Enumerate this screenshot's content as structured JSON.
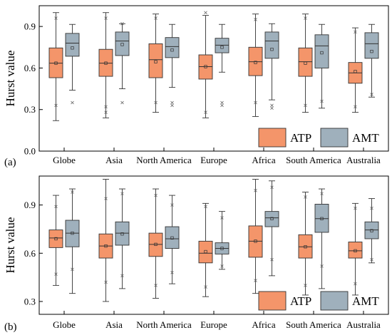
{
  "chart_data": [
    {
      "type": "box",
      "panel_label": "(a)",
      "ylabel": "Hurst value",
      "ylim": [
        0.0,
        1.05
      ],
      "yticks": [
        0.0,
        0.3,
        0.6,
        0.9
      ],
      "ytick_labels": [
        "0.0",
        "0.3",
        "0.6",
        "0.9"
      ],
      "legend_position": "bottom-right",
      "categories": [
        "Globe",
        "Asia",
        "North America",
        "Europe",
        "Africa",
        "South America",
        "Australia"
      ],
      "series": [
        {
          "name": "ATP",
          "color": "#F4956A",
          "boxes": [
            {
              "min": 0.22,
              "q1": 0.53,
              "median": 0.635,
              "q3": 0.745,
              "max": 1.0,
              "mean": 0.635,
              "outliers": [
                0.96,
                0.33
              ]
            },
            {
              "min": 0.24,
              "q1": 0.54,
              "median": 0.635,
              "q3": 0.735,
              "max": 1.0,
              "mean": 0.635,
              "outliers": [
                0.96,
                0.32,
                0.28
              ]
            },
            {
              "min": 0.28,
              "q1": 0.53,
              "median": 0.66,
              "q3": 0.775,
              "max": 0.99,
              "mean": 0.645,
              "outliers": [
                0.96,
                0.35
              ]
            },
            {
              "min": 0.24,
              "q1": 0.52,
              "median": 0.61,
              "q3": 0.695,
              "max": 0.98,
              "mean": 0.61,
              "outliers": [
                1.0,
                0.28
              ]
            },
            {
              "min": 0.25,
              "q1": 0.545,
              "median": 0.645,
              "q3": 0.75,
              "max": 0.99,
              "mean": 0.64,
              "outliers": [
                0.95,
                0.35
              ]
            },
            {
              "min": 0.28,
              "q1": 0.54,
              "median": 0.645,
              "q3": 0.745,
              "max": 0.99,
              "mean": 0.635,
              "outliers": [
                0.96,
                0.33
              ]
            },
            {
              "min": 0.28,
              "q1": 0.49,
              "median": 0.565,
              "q3": 0.64,
              "max": 0.89,
              "mean": 0.575,
              "outliers": [
                0.86,
                0.32
              ]
            }
          ]
        },
        {
          "name": "AMT",
          "color": "#9FB0BC",
          "boxes": [
            {
              "min": 0.44,
              "q1": 0.685,
              "median": 0.78,
              "q3": 0.85,
              "max": 0.915,
              "mean": 0.745,
              "outliers": [
                0.35
              ]
            },
            {
              "min": 0.45,
              "q1": 0.69,
              "median": 0.795,
              "q3": 0.86,
              "max": 0.92,
              "mean": 0.77,
              "outliers": [
                0.92,
                0.35
              ]
            },
            {
              "min": 0.46,
              "q1": 0.675,
              "median": 0.755,
              "q3": 0.82,
              "max": 0.915,
              "mean": 0.73,
              "outliers": [
                0.35,
                0.33
              ]
            },
            {
              "min": 0.57,
              "q1": 0.71,
              "median": 0.765,
              "q3": 0.815,
              "max": 0.915,
              "mean": 0.75,
              "outliers": [
                0.35,
                0.33
              ]
            },
            {
              "min": 0.37,
              "q1": 0.67,
              "median": 0.795,
              "q3": 0.86,
              "max": 0.92,
              "mean": 0.735,
              "outliers": [
                0.33,
                0.31
              ]
            },
            {
              "min": 0.31,
              "q1": 0.6,
              "median": 0.76,
              "q3": 0.84,
              "max": 0.915,
              "mean": 0.71,
              "outliers": [
                0.36
              ]
            },
            {
              "min": 0.39,
              "q1": 0.67,
              "median": 0.775,
              "q3": 0.855,
              "max": 0.915,
              "mean": 0.72,
              "outliers": [
                0.41
              ]
            }
          ]
        }
      ]
    },
    {
      "type": "box",
      "panel_label": "(b)",
      "ylabel": "Hurst value",
      "ylim": [
        0.22,
        1.08
      ],
      "yticks": [
        0.3,
        0.6,
        0.9
      ],
      "ytick_labels": [
        "0.3",
        "0.6",
        "0.9"
      ],
      "legend_position": "bottom-right",
      "categories": [
        "Globe",
        "Asia",
        "North America",
        "Europe",
        "Africa",
        "South America",
        "Australia"
      ],
      "series": [
        {
          "name": "ATP",
          "color": "#F4956A",
          "boxes": [
            {
              "min": 0.4,
              "q1": 0.635,
              "median": 0.695,
              "q3": 0.745,
              "max": 0.96,
              "mean": 0.69,
              "outliers": [
                0.89,
                0.47
              ]
            },
            {
              "min": 0.3,
              "q1": 0.57,
              "median": 0.645,
              "q3": 0.72,
              "max": 1.06,
              "mean": 0.645,
              "outliers": [
                0.94,
                0.42
              ]
            },
            {
              "min": 0.32,
              "q1": 0.58,
              "median": 0.655,
              "q3": 0.725,
              "max": 1.0,
              "mean": 0.655,
              "outliers": [
                0.96,
                0.4
              ]
            },
            {
              "min": 0.33,
              "q1": 0.54,
              "median": 0.6,
              "q3": 0.675,
              "max": 0.91,
              "mean": 0.61,
              "outliers": [
                0.89,
                0.39
              ]
            },
            {
              "min": 0.35,
              "q1": 0.575,
              "median": 0.675,
              "q3": 0.77,
              "max": 1.06,
              "mean": 0.675,
              "outliers": [
                0.99,
                0.43
              ]
            },
            {
              "min": 0.34,
              "q1": 0.57,
              "median": 0.64,
              "q3": 0.715,
              "max": 0.98,
              "mean": 0.64,
              "outliers": [
                0.95,
                0.4
              ]
            },
            {
              "min": 0.34,
              "q1": 0.57,
              "median": 0.615,
              "q3": 0.67,
              "max": 0.91,
              "mean": 0.615,
              "outliers": [
                0.88,
                0.41
              ]
            }
          ]
        },
        {
          "name": "AMT",
          "color": "#9FB0BC",
          "boxes": [
            {
              "min": 0.35,
              "q1": 0.64,
              "median": 0.725,
              "q3": 0.805,
              "max": 1.0,
              "mean": 0.725,
              "outliers": [
                0.98,
                0.5
              ]
            },
            {
              "min": 0.38,
              "q1": 0.65,
              "median": 0.725,
              "q3": 0.795,
              "max": 1.0,
              "mean": 0.72,
              "outliers": [
                0.97,
                0.46
              ]
            },
            {
              "min": 0.41,
              "q1": 0.63,
              "median": 0.69,
              "q3": 0.765,
              "max": 0.96,
              "mean": 0.695,
              "outliers": [
                0.9,
                0.48
              ]
            },
            {
              "min": 0.5,
              "q1": 0.595,
              "median": 0.63,
              "q3": 0.665,
              "max": 0.86,
              "mean": 0.63,
              "outliers": [
                0.82,
                0.52
              ]
            },
            {
              "min": 0.46,
              "q1": 0.765,
              "median": 0.82,
              "q3": 0.86,
              "max": 1.05,
              "mean": 0.815,
              "outliers": [
                1.01,
                0.56
              ]
            },
            {
              "min": 0.38,
              "q1": 0.73,
              "median": 0.815,
              "q3": 0.905,
              "max": 1.0,
              "mean": 0.815,
              "outliers": [
                0.97,
                0.52
              ]
            },
            {
              "min": 0.54,
              "q1": 0.69,
              "median": 0.745,
              "q3": 0.795,
              "max": 0.94,
              "mean": 0.74,
              "outliers": [
                0.88,
                0.56
              ]
            }
          ]
        }
      ]
    }
  ]
}
